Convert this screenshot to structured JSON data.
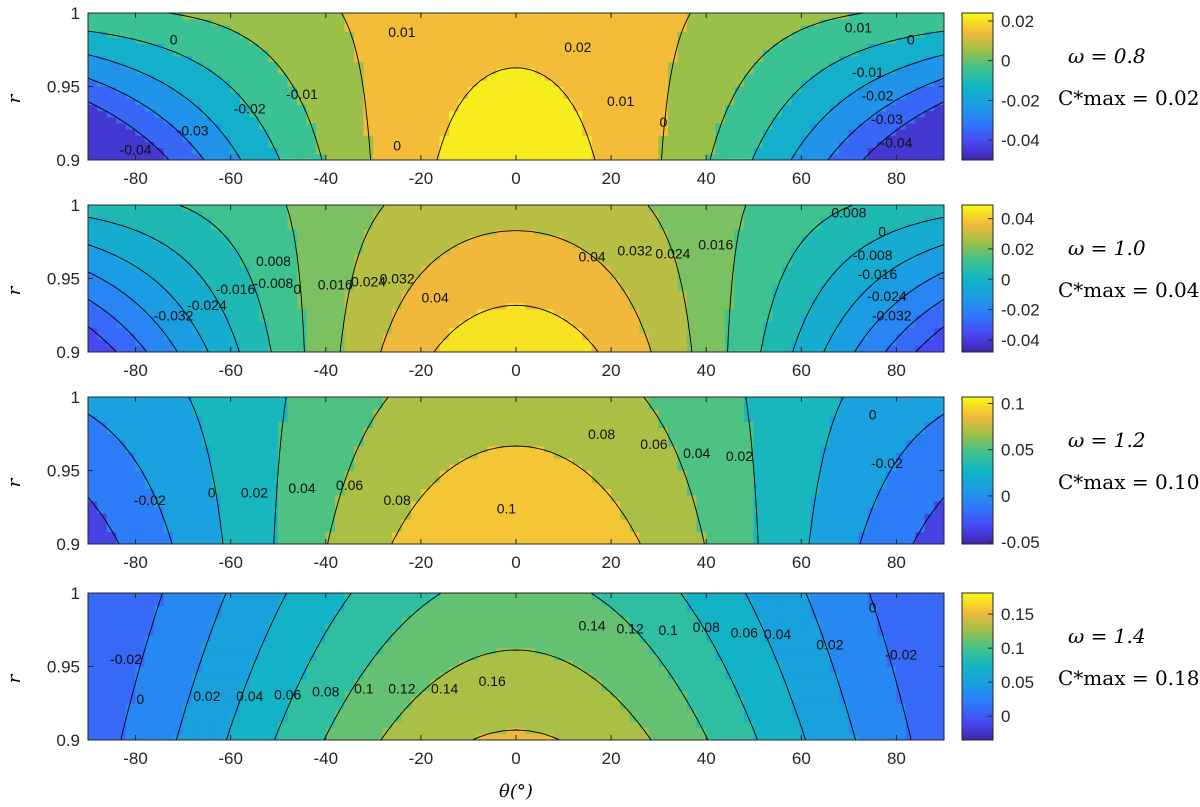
{
  "chart_data": [
    {
      "type": "contour",
      "xlabel": "θ(°)",
      "ylabel": "r",
      "xlim": [
        -90,
        90
      ],
      "ylim": [
        0.9,
        1.0
      ],
      "xticks": [
        "-80",
        "-60",
        "-40",
        "-20",
        "0",
        "20",
        "40",
        "60",
        "80"
      ],
      "yticks": [
        "0.9",
        "0.95",
        "1"
      ],
      "omega_label": "ω = 0.8",
      "cmax_label": "C*max = 0.024",
      "clim": [
        -0.05,
        0.024
      ],
      "colorbar_ticks": [
        "0.02",
        "0",
        "-0.02",
        "-0.04"
      ],
      "levels": [
        -0.04,
        -0.03,
        -0.02,
        -0.01,
        0,
        0.01,
        0.02
      ],
      "field": {
        "a": 0.008,
        "b": 0.0205,
        "c": 0.0,
        "d": 0.07,
        "peak_theta": 0,
        "width": 40
      },
      "contour_labels": [
        {
          "text": "0.01",
          "x": -24,
          "y": 0.987
        },
        {
          "text": "0",
          "x": -72,
          "y": 0.982
        },
        {
          "text": "-0.01",
          "x": -45,
          "y": 0.945
        },
        {
          "text": "-0.02",
          "x": -56,
          "y": 0.935
        },
        {
          "text": "-0.03",
          "x": -68,
          "y": 0.92
        },
        {
          "text": "-0.04",
          "x": -80,
          "y": 0.907
        },
        {
          "text": "0",
          "x": -25,
          "y": 0.91
        },
        {
          "text": "0.02",
          "x": 13,
          "y": 0.977
        },
        {
          "text": "0.01",
          "x": 22,
          "y": 0.94
        },
        {
          "text": "0",
          "x": 31,
          "y": 0.926
        },
        {
          "text": "0.01",
          "x": 72,
          "y": 0.99
        },
        {
          "text": "0",
          "x": 83,
          "y": 0.982
        },
        {
          "text": "-0.01",
          "x": 74,
          "y": 0.96
        },
        {
          "text": "-0.02",
          "x": 76,
          "y": 0.944
        },
        {
          "text": "-0.03",
          "x": 78,
          "y": 0.928
        },
        {
          "text": "-0.04",
          "x": 80,
          "y": 0.912
        }
      ]
    },
    {
      "type": "contour",
      "xlabel": "",
      "ylabel": "r",
      "xlim": [
        -90,
        90
      ],
      "ylim": [
        0.9,
        1.0
      ],
      "xticks": [
        "-80",
        "-60",
        "-40",
        "-20",
        "0",
        "20",
        "40",
        "60",
        "80"
      ],
      "yticks": [
        "0.9",
        "0.95",
        "1"
      ],
      "omega_label": "ω = 1.0",
      "cmax_label": "C*max = 0.049",
      "clim": [
        -0.048,
        0.049
      ],
      "colorbar_ticks": [
        "0.04",
        "0.02",
        "0",
        "-0.02",
        "-0.04"
      ],
      "levels": [
        -0.04,
        -0.032,
        -0.024,
        -0.016,
        -0.008,
        0,
        0.008,
        0.016,
        0.024,
        0.032,
        0.04
      ],
      "field": {
        "a": 0.0,
        "b": 0.045,
        "c": 0.0,
        "d": 0.05,
        "peak_theta": 0,
        "width": 44
      },
      "contour_labels": [
        {
          "text": "-0.032",
          "x": -72,
          "y": 0.925
        },
        {
          "text": "-0.024",
          "x": -65,
          "y": 0.932
        },
        {
          "text": "-0.016",
          "x": -59,
          "y": 0.943
        },
        {
          "text": "-0.008",
          "x": -51,
          "y": 0.947
        },
        {
          "text": "0",
          "x": -46,
          "y": 0.943
        },
        {
          "text": "0.008",
          "x": -51,
          "y": 0.962
        },
        {
          "text": "0.016",
          "x": -38,
          "y": 0.946
        },
        {
          "text": "0.024",
          "x": -31,
          "y": 0.948
        },
        {
          "text": "0.032",
          "x": -25,
          "y": 0.95
        },
        {
          "text": "0.04",
          "x": -17,
          "y": 0.937
        },
        {
          "text": "0.04",
          "x": 16,
          "y": 0.965
        },
        {
          "text": "0.032",
          "x": 25,
          "y": 0.969
        },
        {
          "text": "0.024",
          "x": 33,
          "y": 0.967
        },
        {
          "text": "0.016",
          "x": 42,
          "y": 0.973
        },
        {
          "text": "0.008",
          "x": 70,
          "y": 0.995
        },
        {
          "text": "0",
          "x": 77,
          "y": 0.982
        },
        {
          "text": "-0.008",
          "x": 75,
          "y": 0.966
        },
        {
          "text": "-0.016",
          "x": 76,
          "y": 0.953
        },
        {
          "text": "-0.024",
          "x": 78,
          "y": 0.938
        },
        {
          "text": "-0.032",
          "x": 79,
          "y": 0.925
        }
      ]
    },
    {
      "type": "contour",
      "xlabel": "",
      "ylabel": "r",
      "xlim": [
        -90,
        90
      ],
      "ylim": [
        0.9,
        1.0
      ],
      "xticks": [
        "-80",
        "-60",
        "-40",
        "-20",
        "0",
        "20",
        "40",
        "60",
        "80"
      ],
      "yticks": [
        "0.9",
        "0.95",
        "1"
      ],
      "omega_label": "ω = 1.2",
      "cmax_label": "C*max = 0.107",
      "clim": [
        -0.052,
        0.107
      ],
      "colorbar_ticks": [
        "0.1",
        "0.05",
        "0",
        "-0.05"
      ],
      "levels": [
        -0.02,
        0,
        0.02,
        0.04,
        0.06,
        0.08,
        0.1
      ],
      "field": {
        "a": 0.035,
        "b": 0.075,
        "c": 0.005,
        "d": 0.045,
        "peak_theta": 0,
        "width": 50
      },
      "contour_labels": [
        {
          "text": "-0.02",
          "x": -77,
          "y": 0.93
        },
        {
          "text": "0",
          "x": -64,
          "y": 0.935
        },
        {
          "text": "0.02",
          "x": -55,
          "y": 0.935
        },
        {
          "text": "0.04",
          "x": -45,
          "y": 0.938
        },
        {
          "text": "0.06",
          "x": -35,
          "y": 0.94
        },
        {
          "text": "0.08",
          "x": -25,
          "y": 0.93
        },
        {
          "text": "0.1",
          "x": -2,
          "y": 0.924
        },
        {
          "text": "0.08",
          "x": 18,
          "y": 0.975
        },
        {
          "text": "0.06",
          "x": 29,
          "y": 0.968
        },
        {
          "text": "0.04",
          "x": 38,
          "y": 0.962
        },
        {
          "text": "0.02",
          "x": 47,
          "y": 0.96
        },
        {
          "text": "0",
          "x": 75,
          "y": 0.988
        },
        {
          "text": "-0.02",
          "x": 78,
          "y": 0.955
        }
      ]
    },
    {
      "type": "contour",
      "xlabel": "θ(°)",
      "ylabel": "r",
      "xlim": [
        -90,
        90
      ],
      "ylim": [
        0.9,
        1.0
      ],
      "xticks": [
        "-80",
        "-60",
        "-40",
        "-20",
        "0",
        "20",
        "40",
        "60",
        "80"
      ],
      "yticks": [
        "0.9",
        "0.95",
        "1"
      ],
      "omega_label": "ω = 1.4",
      "cmax_label": "C*max = 0.181",
      "clim": [
        -0.035,
        0.181
      ],
      "colorbar_ticks": [
        "0.15",
        "0.1",
        "0.05",
        "0"
      ],
      "levels": [
        -0.02,
        0,
        0.02,
        0.04,
        0.06,
        0.08,
        0.1,
        0.12,
        0.14,
        0.16
      ],
      "field": {
        "a": 0.075,
        "b": 0.105,
        "c": 0.0,
        "d": 0.0,
        "peak_theta": 0,
        "width": 55
      },
      "contour_labels": [
        {
          "text": "-0.02",
          "x": -82,
          "y": 0.955
        },
        {
          "text": "0",
          "x": -79,
          "y": 0.928
        },
        {
          "text": "0.02",
          "x": -65,
          "y": 0.93
        },
        {
          "text": "0.04",
          "x": -56,
          "y": 0.93
        },
        {
          "text": "0.06",
          "x": -48,
          "y": 0.931
        },
        {
          "text": "0.08",
          "x": -40,
          "y": 0.933
        },
        {
          "text": "0.1",
          "x": -32,
          "y": 0.935
        },
        {
          "text": "0.12",
          "x": -24,
          "y": 0.935
        },
        {
          "text": "0.14",
          "x": -15,
          "y": 0.935
        },
        {
          "text": "0.16",
          "x": -5,
          "y": 0.94
        },
        {
          "text": "0.14",
          "x": 16,
          "y": 0.978
        },
        {
          "text": "0.12",
          "x": 24,
          "y": 0.976
        },
        {
          "text": "0.1",
          "x": 32,
          "y": 0.975
        },
        {
          "text": "0.08",
          "x": 40,
          "y": 0.977
        },
        {
          "text": "0.06",
          "x": 48,
          "y": 0.973
        },
        {
          "text": "0.04",
          "x": 55,
          "y": 0.972
        },
        {
          "text": "0.02",
          "x": 66,
          "y": 0.965
        },
        {
          "text": "0",
          "x": 75,
          "y": 0.99
        },
        {
          "text": "-0.02",
          "x": 81,
          "y": 0.958
        }
      ]
    }
  ]
}
